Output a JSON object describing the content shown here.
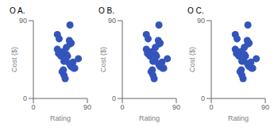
{
  "chart_data": [
    {
      "type": "scatter",
      "title": "O A.",
      "x_label": "Rating",
      "y_label": "Cost ($)",
      "color": "#3355bb",
      "grid": false,
      "x": [
        40,
        48,
        60,
        61,
        42,
        40,
        43,
        55,
        67,
        69,
        66,
        63,
        61,
        55,
        61,
        50,
        48,
        53,
        51,
        75,
        63,
        55,
        51,
        57,
        46
      ],
      "values": [
        57,
        54,
        67,
        63,
        52,
        74,
        69,
        43,
        35,
        35,
        42,
        37,
        85,
        51,
        39,
        33,
        31,
        23,
        43,
        46,
        64,
        59,
        27,
        49,
        49
      ],
      "xlim": [
        0,
        90
      ],
      "xticks": [
        0,
        90
      ],
      "ylim": [
        0,
        90
      ],
      "yticks": [
        0,
        90
      ]
    },
    {
      "type": "scatter",
      "title": "O B.",
      "x_label": "Rating",
      "y_label": "Cost ($)",
      "color": "#3355bb",
      "grid": false,
      "x": [
        40,
        48,
        60,
        61,
        42,
        40,
        43,
        55,
        67,
        69,
        66,
        63,
        61,
        55,
        61,
        50,
        48,
        53,
        51,
        75,
        63,
        55,
        51,
        57,
        46
      ],
      "values": [
        57,
        54,
        67,
        63,
        52,
        74,
        69,
        43,
        35,
        35,
        42,
        37,
        85,
        51,
        39,
        33,
        31,
        23,
        43,
        46,
        64,
        59,
        27,
        49,
        49
      ],
      "xlim": [
        0,
        90
      ],
      "xticks": [
        0,
        90
      ],
      "ylim": [
        0,
        90
      ],
      "yticks": [
        0,
        90
      ]
    },
    {
      "type": "scatter",
      "title": "O C.",
      "x_label": "Rating",
      "y_label": "Cost ($)",
      "color": "#3355bb",
      "grid": false,
      "x": [
        40,
        48,
        60,
        61,
        42,
        40,
        43,
        55,
        67,
        69,
        66,
        63,
        61,
        55,
        61,
        50,
        48,
        53,
        51,
        75,
        63,
        55,
        51,
        57,
        46
      ],
      "values": [
        57,
        54,
        67,
        63,
        52,
        74,
        69,
        43,
        35,
        35,
        42,
        37,
        85,
        51,
        39,
        33,
        31,
        23,
        43,
        46,
        64,
        59,
        27,
        49,
        49
      ],
      "xlim": [
        0,
        90
      ],
      "xticks": [
        0,
        90
      ],
      "ylim": [
        0,
        90
      ],
      "yticks": [
        0,
        90
      ]
    }
  ]
}
